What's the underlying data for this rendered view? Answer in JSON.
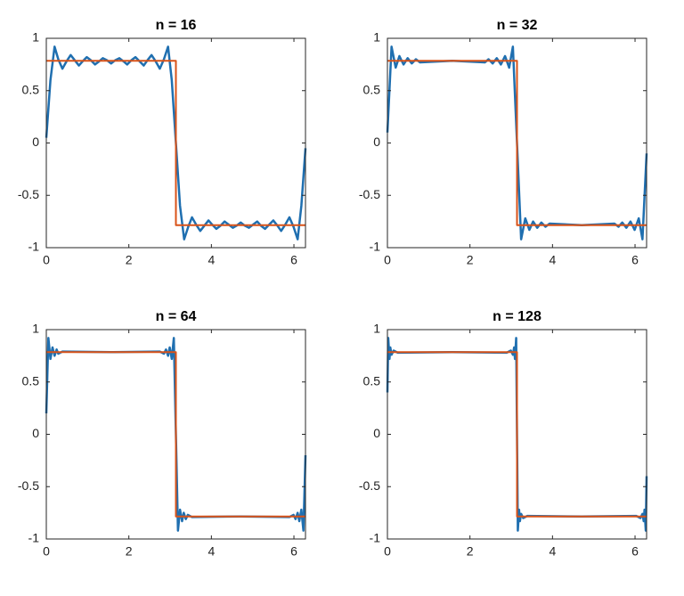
{
  "chart_data": [
    {
      "type": "line",
      "title": "n = 16",
      "xlim": [
        0,
        6.28
      ],
      "ylim": [
        -1,
        1
      ],
      "xticks": [
        0,
        2,
        4,
        6
      ],
      "yticks": [
        -1,
        -0.5,
        0,
        0.5,
        1
      ],
      "series": [
        {
          "color": "#1f6fb0",
          "x": [
            0,
            0.1,
            0.2,
            0.29,
            0.39,
            0.49,
            0.59,
            0.69,
            0.79,
            0.88,
            0.98,
            1.08,
            1.18,
            1.28,
            1.37,
            1.47,
            1.57,
            1.67,
            1.77,
            1.87,
            1.96,
            2.06,
            2.16,
            2.26,
            2.36,
            2.45,
            2.55,
            2.65,
            2.75,
            2.85,
            2.95,
            3.04,
            3.14,
            3.24,
            3.34,
            3.44,
            3.53,
            3.63,
            3.73,
            3.83,
            3.93,
            4.02,
            4.12,
            4.22,
            4.32,
            4.42,
            4.52,
            4.61,
            4.71,
            4.81,
            4.91,
            5.01,
            5.11,
            5.2,
            5.3,
            5.4,
            5.5,
            5.6,
            5.69,
            5.79,
            5.89,
            5.99,
            6.09,
            6.18,
            6.28
          ],
          "values": [
            0.05,
            0.6,
            0.92,
            0.8,
            0.71,
            0.78,
            0.84,
            0.79,
            0.74,
            0.78,
            0.82,
            0.79,
            0.75,
            0.78,
            0.81,
            0.79,
            0.76,
            0.79,
            0.81,
            0.78,
            0.75,
            0.79,
            0.82,
            0.78,
            0.74,
            0.79,
            0.84,
            0.78,
            0.71,
            0.8,
            0.92,
            0.6,
            0,
            -0.6,
            -0.92,
            -0.8,
            -0.71,
            -0.78,
            -0.84,
            -0.79,
            -0.74,
            -0.78,
            -0.82,
            -0.79,
            -0.75,
            -0.78,
            -0.81,
            -0.79,
            -0.76,
            -0.79,
            -0.81,
            -0.78,
            -0.75,
            -0.79,
            -0.82,
            -0.78,
            -0.74,
            -0.79,
            -0.84,
            -0.78,
            -0.71,
            -0.8,
            -0.92,
            -0.6,
            -0.05
          ]
        },
        {
          "color": "#d95319",
          "x": [
            0,
            3.14,
            3.14,
            6.28
          ],
          "values": [
            0.785,
            0.785,
            -0.785,
            -0.785
          ]
        }
      ]
    },
    {
      "type": "line",
      "title": "n = 32",
      "xlim": [
        0,
        6.28
      ],
      "ylim": [
        -1,
        1
      ],
      "xticks": [
        0,
        2,
        4,
        6
      ],
      "yticks": [
        -1,
        -0.5,
        0,
        0.5,
        1
      ],
      "series": [
        {
          "color": "#1f6fb0",
          "x": [
            0,
            0.1,
            0.2,
            0.29,
            0.39,
            0.49,
            0.59,
            0.69,
            0.79,
            1.57,
            2.36,
            2.45,
            2.55,
            2.65,
            2.75,
            2.85,
            2.95,
            3.04,
            3.14,
            3.24,
            3.34,
            3.44,
            3.53,
            3.63,
            3.73,
            3.83,
            3.93,
            4.71,
            5.5,
            5.6,
            5.69,
            5.79,
            5.89,
            5.99,
            6.09,
            6.18,
            6.28
          ],
          "values": [
            0.1,
            0.92,
            0.72,
            0.83,
            0.75,
            0.81,
            0.76,
            0.8,
            0.77,
            0.785,
            0.77,
            0.8,
            0.76,
            0.81,
            0.75,
            0.83,
            0.72,
            0.92,
            0,
            -0.92,
            -0.72,
            -0.83,
            -0.75,
            -0.81,
            -0.76,
            -0.8,
            -0.77,
            -0.785,
            -0.77,
            -0.8,
            -0.76,
            -0.81,
            -0.75,
            -0.83,
            -0.72,
            -0.92,
            -0.1
          ]
        },
        {
          "color": "#d95319",
          "x": [
            0,
            3.14,
            3.14,
            6.28
          ],
          "values": [
            0.785,
            0.785,
            -0.785,
            -0.785
          ]
        }
      ]
    },
    {
      "type": "line",
      "title": "n = 64",
      "xlim": [
        0,
        6.28
      ],
      "ylim": [
        -1,
        1
      ],
      "xticks": [
        0,
        2,
        4,
        6
      ],
      "yticks": [
        -1,
        -0.5,
        0,
        0.5,
        1
      ],
      "series": [
        {
          "color": "#1f6fb0",
          "x": [
            0,
            0.05,
            0.1,
            0.15,
            0.2,
            0.25,
            0.29,
            0.39,
            1.57,
            2.75,
            2.85,
            2.9,
            2.95,
            2.99,
            3.04,
            3.09,
            3.14,
            3.19,
            3.24,
            3.29,
            3.33,
            3.38,
            3.43,
            3.53,
            4.71,
            5.89,
            5.99,
            6.04,
            6.09,
            6.13,
            6.18,
            6.23,
            6.28
          ],
          "values": [
            0.2,
            0.92,
            0.72,
            0.83,
            0.75,
            0.81,
            0.77,
            0.79,
            0.785,
            0.79,
            0.77,
            0.81,
            0.75,
            0.83,
            0.72,
            0.92,
            0,
            -0.92,
            -0.72,
            -0.83,
            -0.75,
            -0.81,
            -0.77,
            -0.79,
            -0.785,
            -0.79,
            -0.77,
            -0.81,
            -0.75,
            -0.83,
            -0.72,
            -0.92,
            -0.2
          ]
        },
        {
          "color": "#d95319",
          "x": [
            0,
            3.14,
            3.14,
            6.28
          ],
          "values": [
            0.785,
            0.785,
            -0.785,
            -0.785
          ]
        }
      ]
    },
    {
      "type": "line",
      "title": "n = 128",
      "xlim": [
        0,
        6.28
      ],
      "ylim": [
        -1,
        1
      ],
      "xticks": [
        0,
        2,
        4,
        6
      ],
      "yticks": [
        -1,
        -0.5,
        0,
        0.5,
        1
      ],
      "series": [
        {
          "color": "#1f6fb0",
          "x": [
            0,
            0.02,
            0.05,
            0.07,
            0.1,
            0.15,
            0.25,
            1.57,
            2.89,
            2.99,
            3.04,
            3.07,
            3.09,
            3.12,
            3.14,
            3.16,
            3.19,
            3.21,
            3.24,
            3.29,
            3.39,
            4.71,
            6.03,
            6.13,
            6.18,
            6.21,
            6.23,
            6.26,
            6.28
          ],
          "values": [
            0.4,
            0.92,
            0.72,
            0.83,
            0.76,
            0.8,
            0.78,
            0.785,
            0.78,
            0.8,
            0.76,
            0.83,
            0.72,
            0.92,
            0,
            -0.92,
            -0.72,
            -0.83,
            -0.76,
            -0.8,
            -0.78,
            -0.785,
            -0.78,
            -0.8,
            -0.76,
            -0.83,
            -0.72,
            -0.92,
            -0.4
          ]
        },
        {
          "color": "#d95319",
          "x": [
            0,
            3.14,
            3.14,
            6.28
          ],
          "values": [
            0.785,
            0.785,
            -0.785,
            -0.785
          ]
        }
      ]
    }
  ]
}
